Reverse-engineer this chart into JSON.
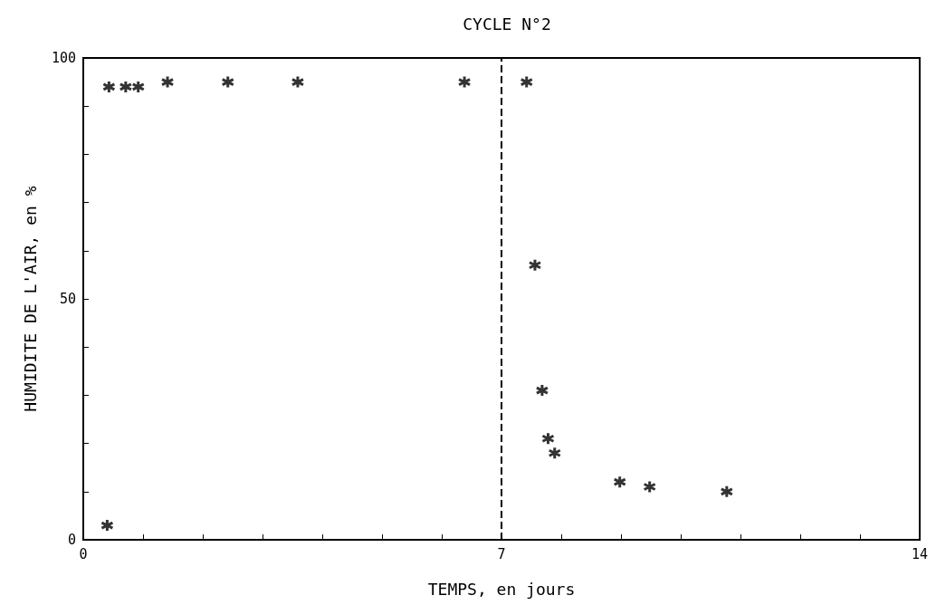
{
  "chart_data": {
    "type": "scatter",
    "title": "CYCLE N°2",
    "xlabel": "TEMPS, en jours",
    "ylabel": "HUMIDITE DE L'AIR, en %",
    "x": [
      0.4,
      0.43,
      0.71,
      0.92,
      1.41,
      2.42,
      3.59,
      6.38,
      7.42,
      7.56,
      7.68,
      7.78,
      7.89,
      8.98,
      9.48,
      10.77
    ],
    "values": [
      3,
      94,
      94,
      94,
      95,
      95,
      95,
      95,
      95,
      57,
      31,
      21,
      18,
      12,
      11,
      10
    ],
    "color": "#000000",
    "marker": "cross",
    "grid": false,
    "xlim": [
      0,
      14
    ],
    "ylim": [
      0,
      100
    ],
    "xticks": [
      0,
      {
        "value": 1,
        "label": null
      },
      {
        "value": 2,
        "label": null
      },
      {
        "value": 3,
        "label": null
      },
      {
        "value": 4,
        "label": null
      },
      {
        "value": 5,
        "label": null
      },
      {
        "value": 6,
        "label": null
      },
      7,
      {
        "value": 8,
        "label": null
      },
      {
        "value": 9,
        "label": null
      },
      {
        "value": 10,
        "label": null
      },
      {
        "value": 11,
        "label": null
      },
      {
        "value": 12,
        "label": null
      },
      {
        "value": 13,
        "label": null
      },
      14
    ],
    "yticks": [
      0,
      {
        "value": 10,
        "label": null
      },
      {
        "value": 20,
        "label": null
      },
      {
        "value": 30,
        "label": null
      },
      {
        "value": 40,
        "label": null
      },
      50,
      {
        "value": 60,
        "label": null
      },
      {
        "value": 70,
        "label": null
      },
      {
        "value": 80,
        "label": null
      },
      {
        "value": 90,
        "label": null
      },
      100
    ],
    "ref_lines": [
      {
        "axis": "x",
        "value": 7,
        "line_style": "dashed",
        "color": "#000000"
      }
    ]
  }
}
